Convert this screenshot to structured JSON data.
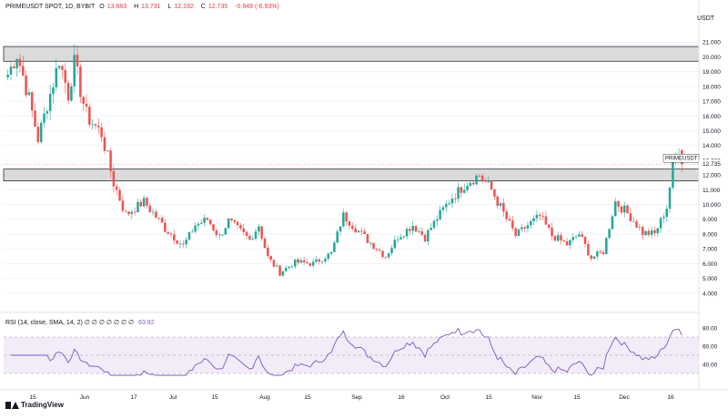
{
  "header": {
    "symbol": "PRIMEUSDT SPOT, 1D, BYBIT",
    "open_label": "O",
    "open": "13.683",
    "high_label": "H",
    "high": "13.731",
    "low_label": "L",
    "low": "12.192",
    "close_label": "C",
    "close": "12.735",
    "change": "-0.948 (-6.93%)"
  },
  "currency": "USDT",
  "price_badge": {
    "symbol": "PRIMEUSDT",
    "value": "12.735"
  },
  "rsi": {
    "label": "RSI (14, close, SMA, 14, 2)",
    "extra": "∅ ∅ ∅ ∅ ∅ ∅ ∅",
    "value": "63.92"
  },
  "logo": "TradingView",
  "colors": {
    "up": "#26a69a",
    "down": "#ef5350",
    "zone": "#cfcfcf",
    "rsi": "#7e57c2",
    "rsi_band": "#ede7f6"
  },
  "chart_data": {
    "type": "candlestick",
    "price_axis": [
      "4.000",
      "5.000",
      "6.000",
      "7.000",
      "8.000",
      "9.000",
      "10.000",
      "11.000",
      "12.000",
      "13.000",
      "14.000",
      "15.000",
      "16.000",
      "17.000",
      "18.000",
      "19.000",
      "20.000",
      "21.000"
    ],
    "price_range": [
      3.0,
      22.0
    ],
    "rsi_axis": [
      "80.00",
      "60.00",
      "40.00"
    ],
    "rsi_range": [
      28,
      82
    ],
    "x_labels": [
      "15",
      "Jun",
      "17",
      "Jul",
      "15",
      "Aug",
      "15",
      "Sep",
      "16",
      "Oct",
      "15",
      "Nov",
      "15",
      "Dec",
      "16"
    ],
    "zones": [
      [
        19.7,
        20.7
      ],
      [
        11.6,
        12.4
      ]
    ],
    "candles": [],
    "rsi_values": []
  }
}
